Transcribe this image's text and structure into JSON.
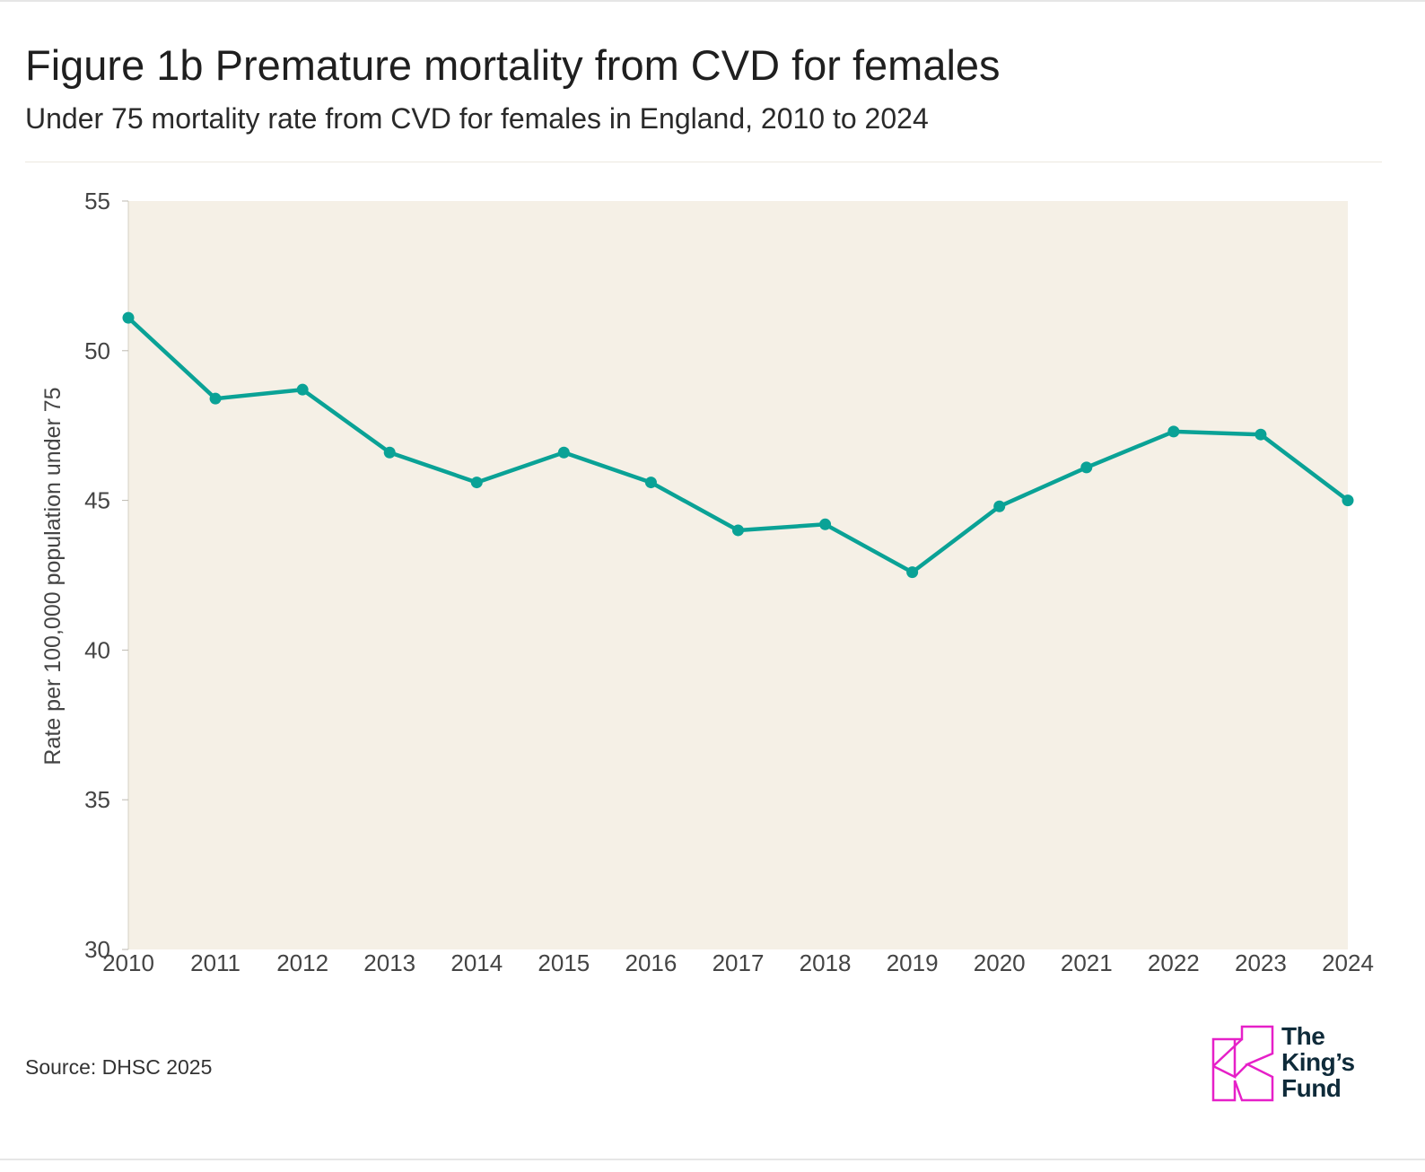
{
  "header": {
    "title": "Figure 1b Premature mortality from CVD for females",
    "subtitle": "Under 75 mortality rate from CVD for females in England, 2010 to 2024"
  },
  "footer": {
    "source": "Source: DHSC 2025"
  },
  "logo": {
    "line1": "The",
    "line2": "King’s",
    "line3": "Fund",
    "icon": "kings-fund-k-mark-icon",
    "color": "#e620c8"
  },
  "chart_data": {
    "type": "line",
    "title": "Figure 1b Premature mortality from CVD for females",
    "subtitle": "Under 75 mortality rate from CVD for females in England, 2010 to 2024",
    "xlabel": "",
    "ylabel": "Rate per 100,000 population under 75",
    "x": [
      "2010",
      "2011",
      "2012",
      "2013",
      "2014",
      "2015",
      "2016",
      "2017",
      "2018",
      "2019",
      "2020",
      "2021",
      "2022",
      "2023",
      "2024"
    ],
    "series": [
      {
        "values": [
          51.1,
          48.4,
          48.7,
          46.6,
          45.6,
          46.6,
          45.6,
          44.0,
          44.2,
          42.6,
          44.8,
          46.1,
          47.3,
          47.2,
          45.0
        ],
        "color": "#0aa296"
      }
    ],
    "ylim": [
      30,
      55
    ],
    "yticks": [
      "30",
      "35",
      "40",
      "45",
      "50",
      "55"
    ],
    "grid": false,
    "legend": "none",
    "plot_background": "#f5f0e6"
  }
}
